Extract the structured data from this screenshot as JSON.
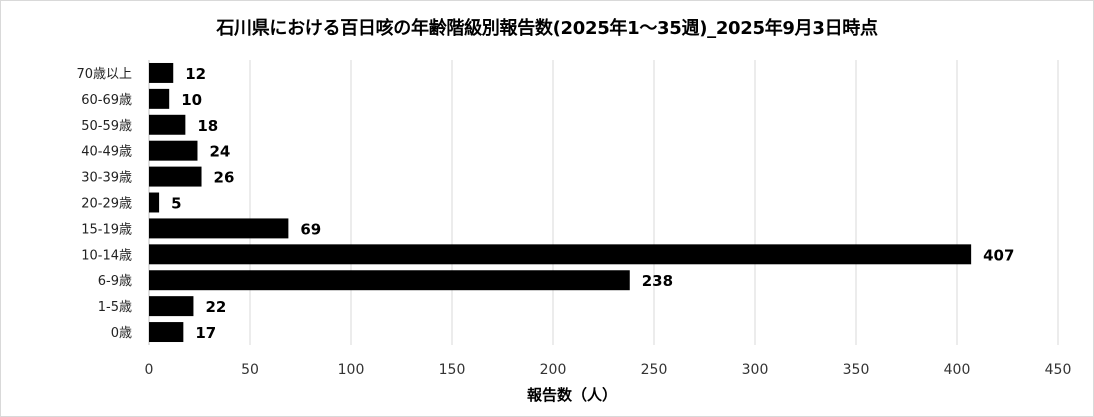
{
  "chart_data": {
    "type": "bar",
    "orientation": "horizontal",
    "title": "石川県における百日咳の年齢階級別報告数(2025年1～35週)_2025年9月3日時点",
    "xlabel": "報告数（人）",
    "ylabel": "",
    "categories": [
      "0歳",
      "1-5歳",
      "6-9歳",
      "10-14歳",
      "15-19歳",
      "20-29歳",
      "30-39歳",
      "40-49歳",
      "50-59歳",
      "60-69歳",
      "70歳以上"
    ],
    "values": [
      17,
      22,
      238,
      407,
      69,
      5,
      26,
      24,
      18,
      10,
      12
    ],
    "xlim": [
      0,
      450
    ],
    "xticks": [
      0,
      50,
      100,
      150,
      200,
      250,
      300,
      350,
      400,
      450
    ],
    "grid": "vertical",
    "legend": "none",
    "bar_color": "#000000",
    "grid_color": "#d9d9d9"
  }
}
